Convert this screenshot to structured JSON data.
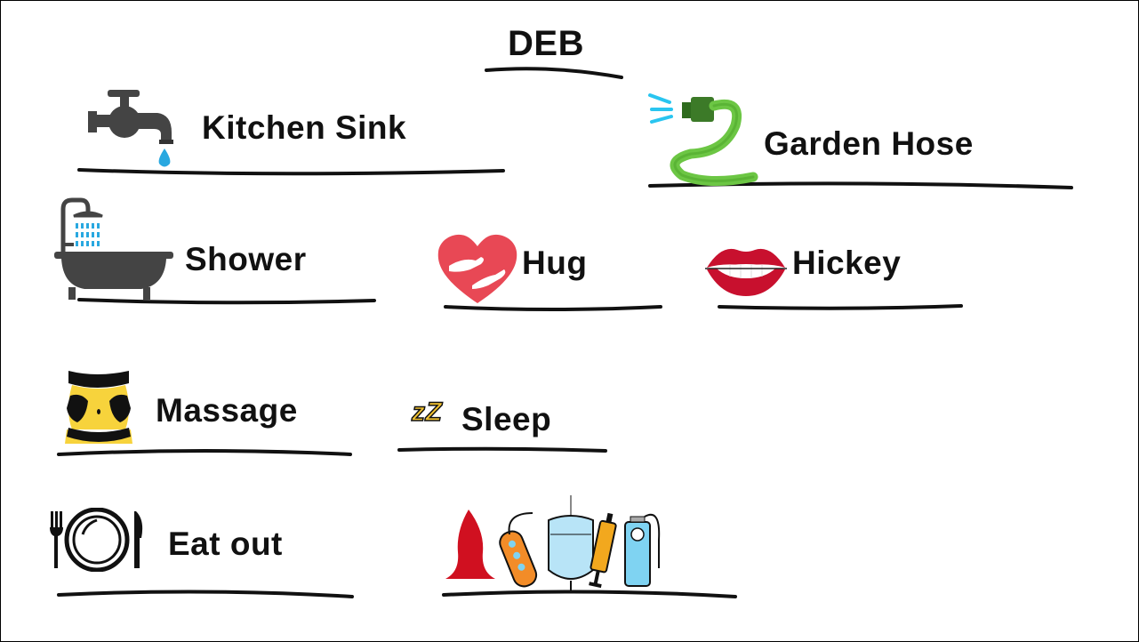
{
  "title": "DEB",
  "items": {
    "kitchen_sink": "Kitchen Sink",
    "garden_hose": "Garden Hose",
    "shower": "Shower",
    "hug": "Hug",
    "hickey": "Hickey",
    "massage": "Massage",
    "sleep": "Sleep",
    "eat_out": "Eat out",
    "sleep_icon_text": "zZ"
  },
  "colors": {
    "ink": "#111111",
    "water": "#29a8e0",
    "hose": "#6cc644",
    "heart": "#e84855",
    "lips": "#c8102e",
    "tub": "#444444",
    "massage_skin": "#f7d33c",
    "toy_red": "#d01020",
    "toy_orange": "#f28c28",
    "bag_blue": "#b8e4f7"
  }
}
